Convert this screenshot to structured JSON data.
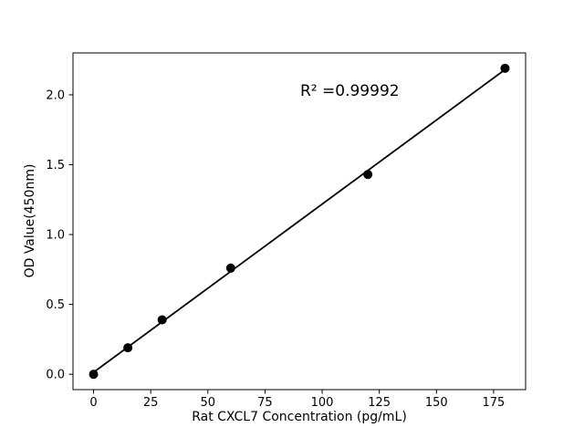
{
  "figure": {
    "background": "#ffffff",
    "axis_color": "#000000"
  },
  "chart_data": {
    "type": "scatter",
    "title": "",
    "xlabel": "Rat CXCL7 Concentration (pg/mL)",
    "ylabel": "OD Value(450nm)",
    "x": [
      0,
      15,
      30,
      60,
      120,
      180
    ],
    "y": [
      0.0,
      0.19,
      0.39,
      0.76,
      1.43,
      2.19
    ],
    "fit_line": true,
    "annotation": {
      "text": "R² =0.99992",
      "x": 88,
      "y": 2.03
    },
    "xlim": [
      -9,
      189
    ],
    "ylim": [
      -0.11,
      2.3
    ],
    "xticks": [
      0,
      25,
      50,
      75,
      100,
      125,
      150,
      175
    ],
    "xtick_labels": [
      "0",
      "25",
      "50",
      "75",
      "100",
      "125",
      "150",
      "175"
    ],
    "yticks": [
      0.0,
      0.5,
      1.0,
      1.5,
      2.0
    ],
    "ytick_labels": [
      "0.0",
      "0.5",
      "1.0",
      "1.5",
      "2.0"
    ],
    "grid": false,
    "legend": null,
    "marker_color": "#000000",
    "line_color": "#000000"
  }
}
